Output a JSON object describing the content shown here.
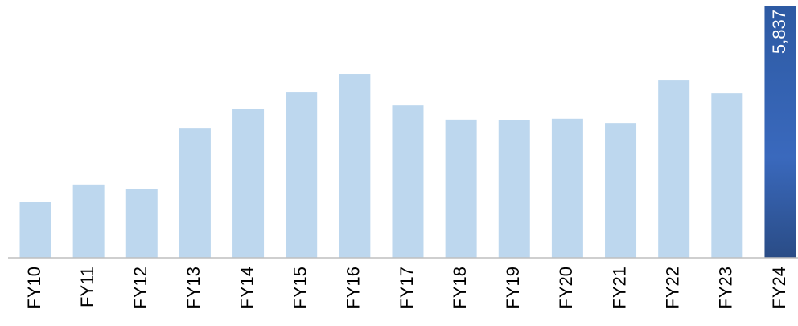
{
  "chart_data": {
    "type": "bar",
    "categories": [
      "FY10",
      "FY11",
      "FY12",
      "FY13",
      "FY14",
      "FY15",
      "FY16",
      "FY17",
      "FY18",
      "FY19",
      "FY20",
      "FY21",
      "FY22",
      "FY23",
      "FY24"
    ],
    "values": [
      1290,
      1700,
      1590,
      3000,
      3450,
      3840,
      4270,
      3540,
      3210,
      3200,
      3230,
      3130,
      4120,
      3820,
      5837
    ],
    "value_labels": [
      null,
      null,
      null,
      null,
      null,
      null,
      null,
      null,
      null,
      null,
      null,
      null,
      null,
      null,
      "5,837"
    ],
    "colors": [
      "#bdd7ee",
      "#bdd7ee",
      "#bdd7ee",
      "#bdd7ee",
      "#bdd7ee",
      "#bdd7ee",
      "#bdd7ee",
      "#bdd7ee",
      "#bdd7ee",
      "#bdd7ee",
      "#bdd7ee",
      "#bdd7ee",
      "#bdd7ee",
      "#bdd7ee",
      "#2f5597"
    ]
  }
}
